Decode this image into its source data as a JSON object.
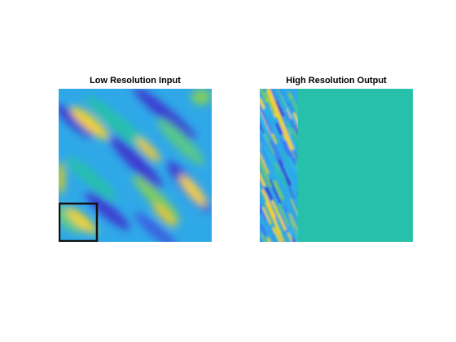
{
  "panels": {
    "left": {
      "title": "Low Resolution Input"
    },
    "right": {
      "title": "High Resolution Output"
    }
  },
  "colors": {
    "colormap": "parula",
    "deep_blue": "#3e3bd0",
    "blue": "#3b7cf0",
    "cyan": "#29b6e6",
    "teal": "#26c0ab",
    "green": "#7fcc5e",
    "yellow": "#f6d22c",
    "output_fill": "#26c0ab",
    "crop_box": "#111111"
  },
  "crop_box": {
    "visible": true
  }
}
